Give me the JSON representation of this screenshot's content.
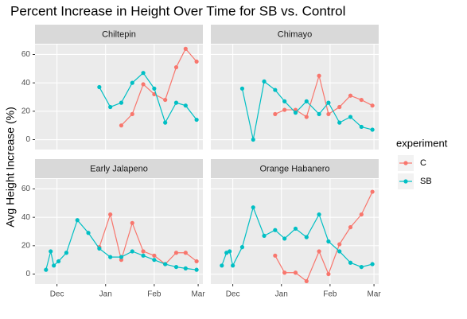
{
  "chart_data": {
    "type": "line",
    "title": "Percent Increase in Height Over Time for SB vs. Control",
    "ylabel": "Avg Height Increase (%)",
    "legend_title": "experiment",
    "legend": "right",
    "grid": true,
    "xlim": [
      -14,
      93
    ],
    "ylim": [
      -7,
      67
    ],
    "yticks": [
      0,
      20,
      40,
      60
    ],
    "xticks": [
      {
        "value": 0,
        "label": "Dec"
      },
      {
        "value": 31,
        "label": "Jan"
      },
      {
        "value": 62,
        "label": "Feb"
      },
      {
        "value": 90,
        "label": "Mar"
      }
    ],
    "series": [
      {
        "name": "C",
        "color": "#F8766D"
      },
      {
        "name": "SB",
        "color": "#00BFC4"
      }
    ],
    "facets": [
      {
        "name": "Chiltepin",
        "series": [
          {
            "x": [
              41,
              48,
              55,
              62,
              69,
              76,
              82,
              89
            ],
            "values": [
              10,
              18,
              39,
              32,
              28,
              51,
              64,
              55
            ]
          },
          {
            "x": [
              27,
              34,
              41,
              48,
              55,
              62,
              69,
              76,
              82,
              89
            ],
            "values": [
              37,
              23,
              26,
              40,
              47,
              36,
              12,
              26,
              24,
              14
            ]
          }
        ]
      },
      {
        "name": "Chimayo",
        "series": [
          {
            "x": [
              27,
              33,
              40,
              47,
              55,
              61,
              68,
              75,
              82,
              89
            ],
            "values": [
              18,
              21,
              21,
              16,
              45,
              18,
              23,
              31,
              28,
              24
            ]
          },
          {
            "x": [
              6,
              13,
              20,
              27,
              33,
              40,
              47,
              55,
              61,
              68,
              75,
              82,
              89
            ],
            "values": [
              36,
              0,
              41,
              35,
              27,
              19,
              27,
              18,
              26,
              12,
              16,
              9,
              7
            ]
          }
        ]
      },
      {
        "name": "Early Jalapeno",
        "series": [
          {
            "x": [
              27,
              34,
              41,
              48,
              55,
              62,
              69,
              76,
              82,
              89
            ],
            "values": [
              19,
              42,
              10,
              36,
              16,
              13,
              7,
              15,
              15,
              9
            ]
          },
          {
            "x": [
              -7,
              -4,
              -2,
              1,
              6,
              13,
              20,
              27,
              34,
              41,
              48,
              55,
              62,
              69,
              76,
              82,
              89
            ],
            "values": [
              3,
              16,
              6,
              9,
              15,
              38,
              29,
              18,
              12,
              12,
              16,
              13,
              10,
              7,
              5,
              4,
              3
            ]
          }
        ]
      },
      {
        "name": "Orange Habanero",
        "series": [
          {
            "x": [
              27,
              33,
              40,
              47,
              55,
              61,
              68,
              75,
              82,
              89
            ],
            "values": [
              13,
              1,
              1,
              -5,
              16,
              0,
              21,
              33,
              42,
              58
            ]
          },
          {
            "x": [
              -7,
              -4,
              -2,
              0,
              6,
              13,
              20,
              27,
              33,
              40,
              47,
              55,
              61,
              68,
              75,
              82,
              89
            ],
            "values": [
              6,
              15,
              16,
              6,
              19,
              47,
              27,
              31,
              25,
              32,
              26,
              42,
              23,
              16,
              8,
              5,
              7
            ]
          }
        ]
      }
    ]
  }
}
